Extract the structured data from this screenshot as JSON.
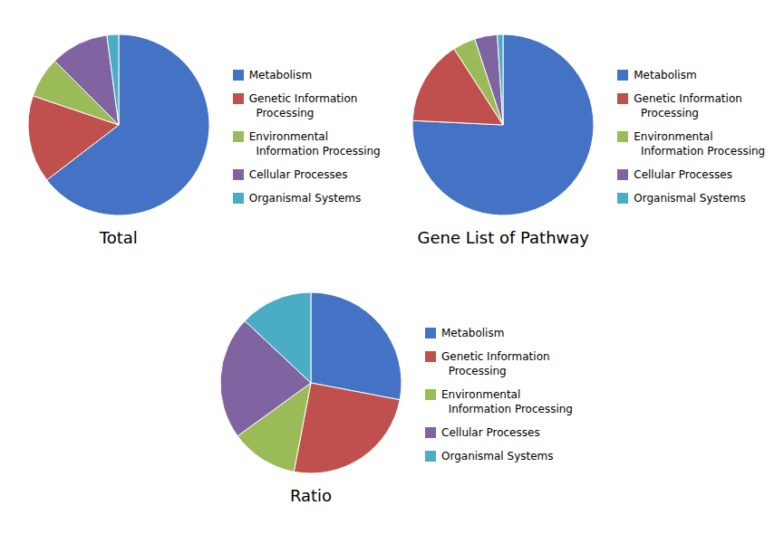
{
  "chart_data": [
    {
      "type": "pie",
      "title": "Total",
      "categories": [
        "Metabolism",
        "Genetic Information\n  Processing",
        "Environmental\n  Information Processing",
        "Cellular Processes",
        "Organismal Systems"
      ],
      "values": [
        62,
        15,
        7,
        10,
        2
      ],
      "colors": [
        "#4472C4",
        "#C0504D",
        "#9BBB59",
        "#8064A2",
        "#4BACC6"
      ],
      "legend": "right"
    },
    {
      "type": "pie",
      "title": "Gene List of Pathway",
      "categories": [
        "Metabolism",
        "Genetic Information\n  Processing",
        "Environmental\n  Information Processing",
        "Cellular Processes",
        "Organismal Systems"
      ],
      "values": [
        75,
        15,
        4,
        4,
        1
      ],
      "colors": [
        "#4472C4",
        "#C0504D",
        "#9BBB59",
        "#8064A2",
        "#4BACC6"
      ],
      "legend": "right"
    },
    {
      "type": "pie",
      "title": "Ratio",
      "categories": [
        "Metabolism",
        "Genetic Information\n  Processing",
        "Environmental\n  Information Processing",
        "Cellular Processes",
        "Organismal Systems"
      ],
      "values": [
        28,
        25,
        12,
        22,
        13
      ],
      "colors": [
        "#4472C4",
        "#C0504D",
        "#9BBB59",
        "#8064A2",
        "#4BACC6"
      ],
      "legend": "right"
    }
  ]
}
